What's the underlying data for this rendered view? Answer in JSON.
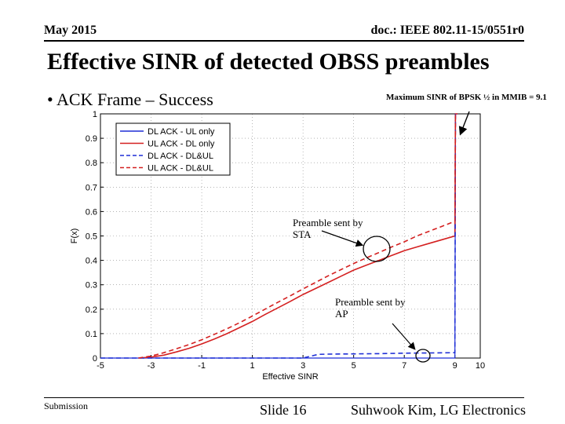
{
  "header": {
    "date": "May 2015",
    "doc": "doc.: IEEE 802.11-15/0551r0"
  },
  "title": "Effective SINR of detected OBSS preambles",
  "bullet": "• ACK Frame – Success",
  "note_top": "Maximum SINR of BPSK ½ in MMIB = 9.1",
  "annotations": {
    "sta": [
      "Preamble sent by",
      "STA"
    ],
    "ap": [
      "Preamble sent by",
      "AP"
    ]
  },
  "footer": {
    "left": "Submission",
    "mid": "Slide 16",
    "right": "Suhwook Kim, LG Electronics"
  },
  "colors": {
    "blue": "#1f2fd6",
    "red": "#d42020"
  },
  "chart_data": {
    "type": "line",
    "title": "",
    "xlabel": "Effective SINR",
    "ylabel": "F(x)",
    "xlim": [
      -5,
      10
    ],
    "ylim": [
      0,
      1
    ],
    "xticks": [
      -5,
      -3,
      -1,
      1,
      3,
      5,
      7,
      9,
      10
    ],
    "yticks": [
      0,
      0.1,
      0.2,
      0.3,
      0.4,
      0.5,
      0.6,
      0.7,
      0.8,
      0.9,
      1
    ],
    "grid": true,
    "legend_position": "top-left",
    "series": [
      {
        "name": "DL ACK - UL only",
        "color": "#1f2fd6",
        "dash": "solid",
        "x": [
          -5,
          9.0,
          9.02,
          9.1
        ],
        "y": [
          0,
          0,
          1,
          1
        ]
      },
      {
        "name": "UL ACK - DL only",
        "color": "#d42020",
        "dash": "solid",
        "x": [
          -3.5,
          -3,
          -2.5,
          -2,
          -1.5,
          -1,
          -0.5,
          0,
          0.5,
          1,
          1.5,
          2,
          2.5,
          3,
          3.5,
          4,
          4.5,
          5,
          5.5,
          6,
          6.5,
          7,
          7.5,
          8,
          8.5,
          9.0,
          9.02,
          9.1
        ],
        "y": [
          0,
          0.004,
          0.012,
          0.025,
          0.04,
          0.058,
          0.078,
          0.1,
          0.125,
          0.15,
          0.178,
          0.205,
          0.232,
          0.26,
          0.285,
          0.31,
          0.335,
          0.36,
          0.38,
          0.4,
          0.42,
          0.44,
          0.455,
          0.47,
          0.485,
          0.5,
          1,
          1
        ]
      },
      {
        "name": "DL ACK - DL&UL",
        "color": "#1f2fd6",
        "dash": "dashed",
        "x": [
          -5,
          3.0,
          3.4,
          3.6,
          4,
          5,
          6,
          7,
          8,
          9.0,
          9.02,
          9.1
        ],
        "y": [
          0,
          0,
          0.01,
          0.015,
          0.016,
          0.017,
          0.018,
          0.02,
          0.021,
          0.022,
          1,
          1
        ]
      },
      {
        "name": "UL ACK - DL&UL",
        "color": "#d42020",
        "dash": "dashed",
        "x": [
          -3.5,
          -3,
          -2.5,
          -2,
          -1.5,
          -1,
          -0.5,
          0,
          0.5,
          1,
          1.5,
          2,
          2.5,
          3,
          3.5,
          4,
          4.5,
          5,
          5.5,
          6,
          6.5,
          7,
          7.5,
          8,
          8.5,
          9.0,
          9.02,
          9.1
        ],
        "y": [
          0,
          0.008,
          0.022,
          0.038,
          0.055,
          0.075,
          0.097,
          0.12,
          0.145,
          0.172,
          0.2,
          0.228,
          0.255,
          0.283,
          0.31,
          0.337,
          0.362,
          0.387,
          0.41,
          0.432,
          0.455,
          0.476,
          0.5,
          0.52,
          0.54,
          0.56,
          1,
          1
        ]
      }
    ]
  }
}
